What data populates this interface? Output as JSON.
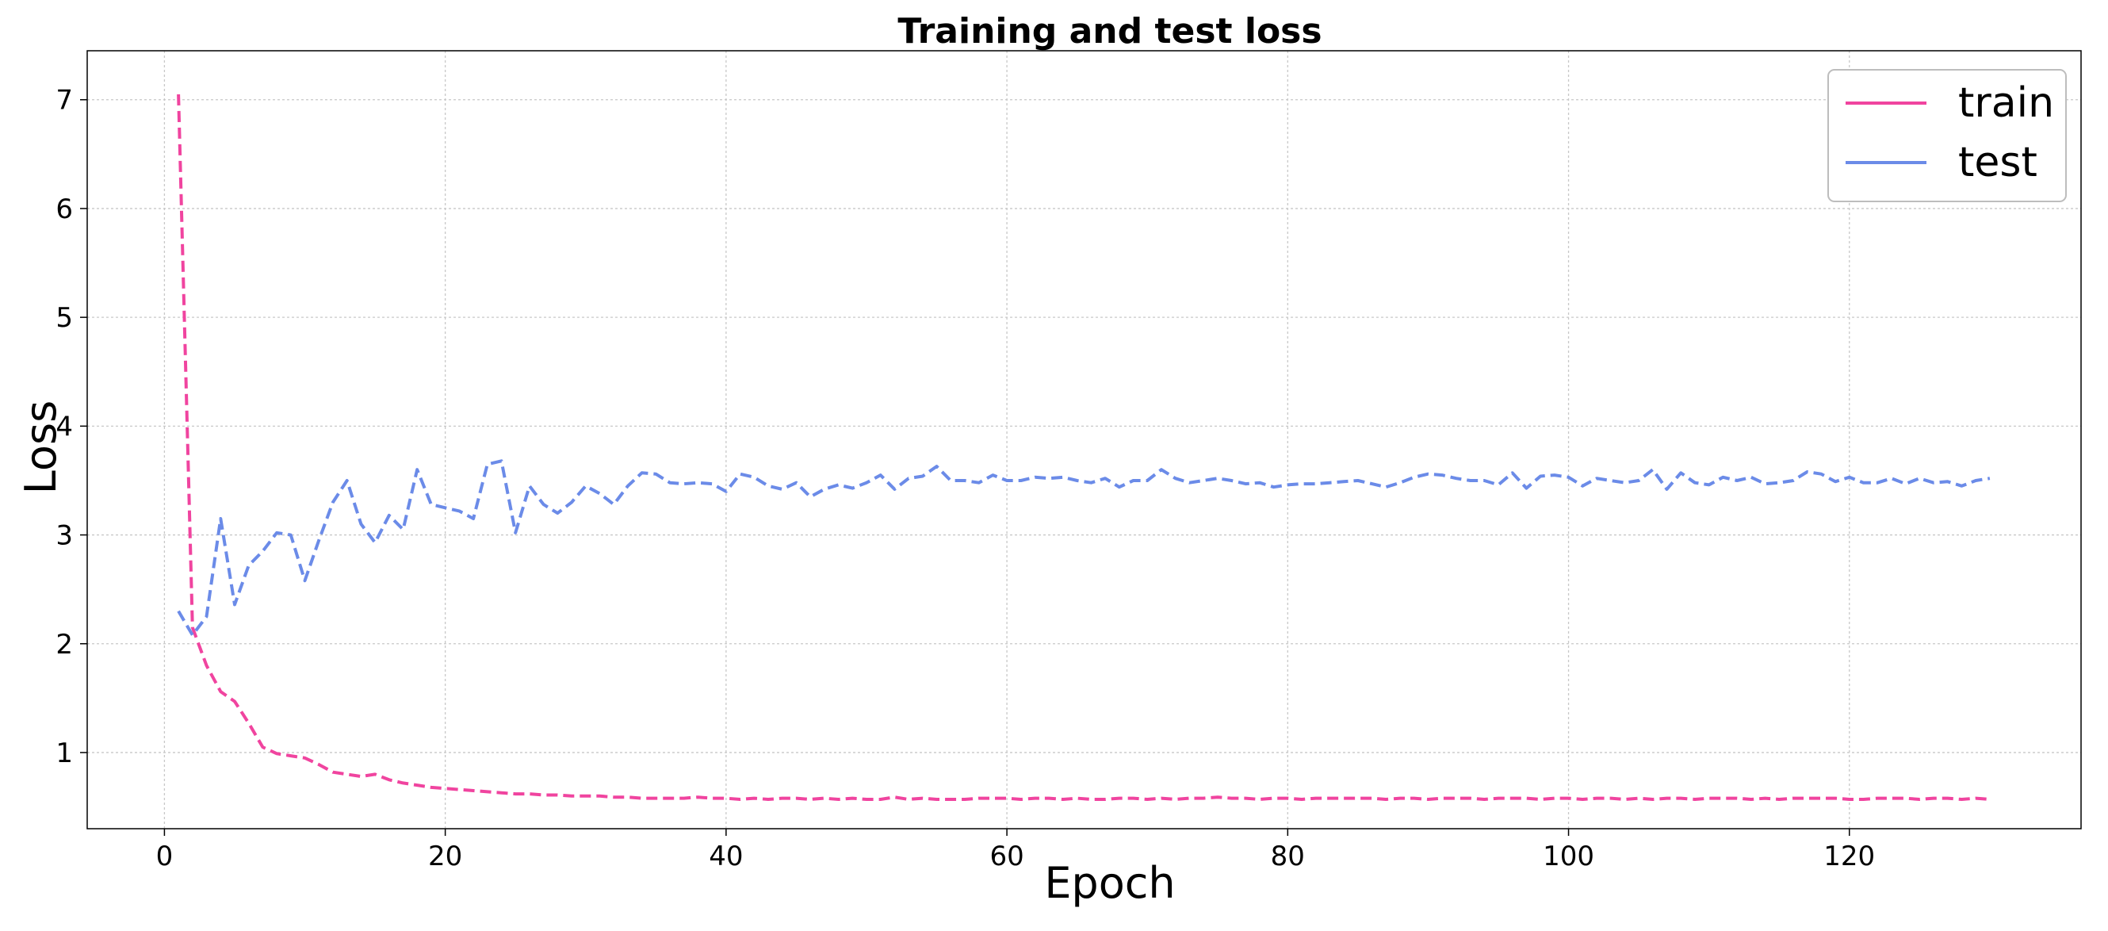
{
  "chart_data": {
    "type": "line",
    "title": "Training and test loss",
    "xlabel": "Epoch",
    "ylabel": "Loss",
    "xlim": [
      -5.5,
      136.5
    ],
    "ylim": [
      0.3,
      7.45
    ],
    "xticks": [
      0,
      20,
      40,
      60,
      80,
      100,
      120
    ],
    "yticks": [
      1,
      2,
      3,
      4,
      5,
      6,
      7
    ],
    "grid": true,
    "legend": "top-right",
    "series": [
      {
        "name": "train",
        "color": "#f0449f",
        "line_style": "dashed",
        "x_start": 1,
        "values": [
          7.05,
          2.15,
          1.8,
          1.56,
          1.47,
          1.27,
          1.05,
          0.99,
          0.97,
          0.95,
          0.89,
          0.82,
          0.8,
          0.78,
          0.8,
          0.75,
          0.72,
          0.7,
          0.68,
          0.67,
          0.66,
          0.65,
          0.64,
          0.63,
          0.62,
          0.62,
          0.61,
          0.61,
          0.6,
          0.6,
          0.6,
          0.59,
          0.59,
          0.58,
          0.58,
          0.58,
          0.58,
          0.59,
          0.58,
          0.58,
          0.57,
          0.58,
          0.57,
          0.58,
          0.58,
          0.57,
          0.58,
          0.57,
          0.58,
          0.57,
          0.57,
          0.59,
          0.57,
          0.58,
          0.57,
          0.57,
          0.57,
          0.58,
          0.58,
          0.58,
          0.57,
          0.58,
          0.58,
          0.57,
          0.58,
          0.57,
          0.57,
          0.58,
          0.58,
          0.57,
          0.58,
          0.57,
          0.58,
          0.58,
          0.59,
          0.58,
          0.58,
          0.57,
          0.58,
          0.58,
          0.57,
          0.58,
          0.58,
          0.58,
          0.58,
          0.58,
          0.57,
          0.58,
          0.58,
          0.57,
          0.58,
          0.58,
          0.58,
          0.57,
          0.58,
          0.58,
          0.58,
          0.57,
          0.58,
          0.58,
          0.57,
          0.58,
          0.58,
          0.57,
          0.58,
          0.57,
          0.58,
          0.58,
          0.57,
          0.58,
          0.58,
          0.58,
          0.57,
          0.58,
          0.57,
          0.58,
          0.58,
          0.58,
          0.58,
          0.57,
          0.57,
          0.58,
          0.58,
          0.58,
          0.57,
          0.58,
          0.58,
          0.57,
          0.58,
          0.57
        ]
      },
      {
        "name": "test",
        "color": "#6b8be8",
        "line_style": "dashed",
        "x_start": 1,
        "values": [
          2.3,
          2.08,
          2.25,
          3.15,
          2.36,
          2.72,
          2.85,
          3.02,
          3.0,
          2.58,
          2.95,
          3.3,
          3.5,
          3.1,
          2.93,
          3.18,
          3.05,
          3.6,
          3.28,
          3.25,
          3.22,
          3.15,
          3.65,
          3.68,
          3.02,
          3.45,
          3.28,
          3.2,
          3.3,
          3.45,
          3.38,
          3.28,
          3.45,
          3.57,
          3.56,
          3.48,
          3.47,
          3.48,
          3.47,
          3.4,
          3.56,
          3.53,
          3.45,
          3.42,
          3.48,
          3.35,
          3.42,
          3.46,
          3.43,
          3.48,
          3.55,
          3.42,
          3.52,
          3.54,
          3.63,
          3.5,
          3.5,
          3.48,
          3.55,
          3.5,
          3.5,
          3.53,
          3.52,
          3.53,
          3.5,
          3.48,
          3.52,
          3.44,
          3.5,
          3.5,
          3.6,
          3.52,
          3.48,
          3.5,
          3.52,
          3.5,
          3.47,
          3.48,
          3.44,
          3.46,
          3.47,
          3.47,
          3.48,
          3.49,
          3.5,
          3.47,
          3.44,
          3.48,
          3.53,
          3.56,
          3.55,
          3.52,
          3.5,
          3.5,
          3.46,
          3.57,
          3.43,
          3.54,
          3.55,
          3.53,
          3.45,
          3.52,
          3.5,
          3.48,
          3.5,
          3.6,
          3.42,
          3.57,
          3.48,
          3.46,
          3.53,
          3.5,
          3.53,
          3.47,
          3.48,
          3.5,
          3.58,
          3.56,
          3.49,
          3.53,
          3.48,
          3.48,
          3.52,
          3.47,
          3.52,
          3.48,
          3.49,
          3.45,
          3.5,
          3.52
        ]
      }
    ]
  }
}
